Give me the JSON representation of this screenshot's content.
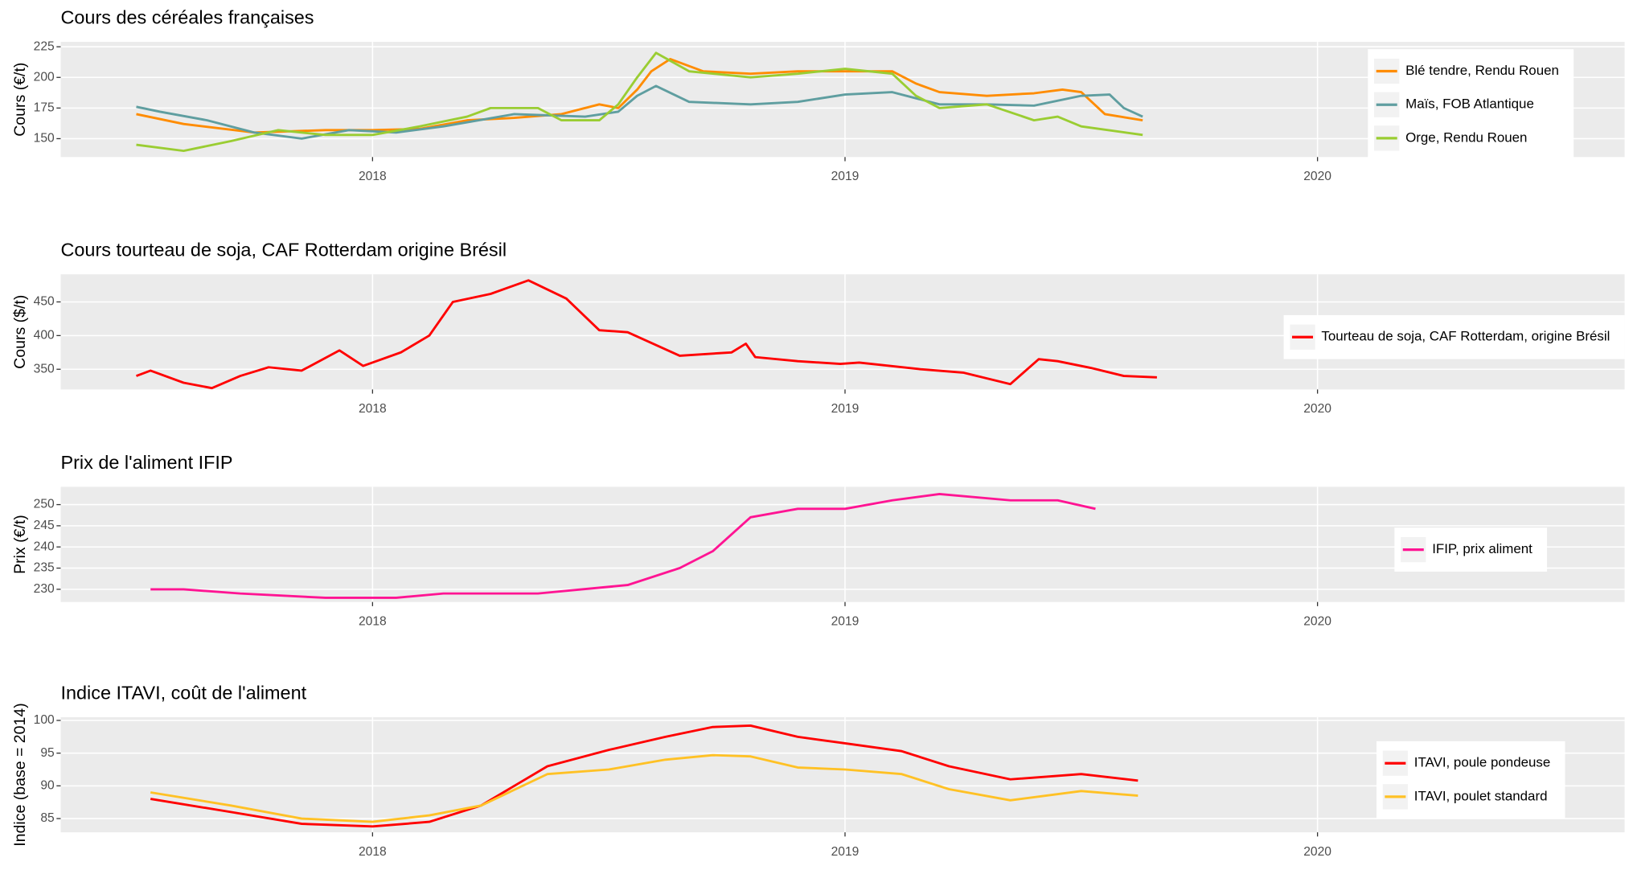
{
  "chart_data": [
    {
      "type": "line",
      "title": "Cours des céréales françaises",
      "ylabel": "Cours (€/t)",
      "legend": "right",
      "grid": true,
      "xlim": [
        2017.34,
        2020.65
      ],
      "xticks": [
        2018,
        2019,
        2020
      ],
      "ylim": [
        135,
        229
      ],
      "yticks": [
        150,
        175,
        200,
        225
      ],
      "series": [
        {
          "name": "Blé tendre, Rendu Rouen",
          "color": "#ff8c00",
          "x": [
            2017.5,
            2017.6,
            2017.75,
            2017.9,
            2018.0,
            2018.1,
            2018.2,
            2018.3,
            2018.4,
            2018.48,
            2018.52,
            2018.56,
            2018.59,
            2018.63,
            2018.7,
            2018.8,
            2018.9,
            2019.0,
            2019.1,
            2019.15,
            2019.2,
            2019.3,
            2019.4,
            2019.46,
            2019.5,
            2019.55,
            2019.63
          ],
          "values": [
            170,
            162,
            155,
            157,
            157,
            158,
            165,
            167,
            170,
            178,
            175,
            190,
            205,
            215,
            205,
            203,
            205,
            205,
            205,
            195,
            188,
            185,
            187,
            190,
            188,
            170,
            165
          ]
        },
        {
          "name": "Maïs, FOB Atlantique",
          "color": "#5f9ea0",
          "x": [
            2017.5,
            2017.55,
            2017.65,
            2017.75,
            2017.85,
            2017.95,
            2018.05,
            2018.15,
            2018.3,
            2018.45,
            2018.52,
            2018.56,
            2018.6,
            2018.67,
            2018.8,
            2018.9,
            2019.0,
            2019.1,
            2019.2,
            2019.3,
            2019.4,
            2019.5,
            2019.56,
            2019.59,
            2019.63
          ],
          "values": [
            176,
            172,
            165,
            155,
            150,
            157,
            155,
            160,
            170,
            168,
            172,
            185,
            193,
            180,
            178,
            180,
            186,
            188,
            178,
            178,
            177,
            185,
            186,
            175,
            168
          ]
        },
        {
          "name": "Orge, Rendu Rouen",
          "color": "#9acd32",
          "x": [
            2017.5,
            2017.6,
            2017.7,
            2017.8,
            2017.9,
            2018.0,
            2018.1,
            2018.2,
            2018.25,
            2018.35,
            2018.4,
            2018.48,
            2018.52,
            2018.56,
            2018.6,
            2018.67,
            2018.8,
            2018.9,
            2019.0,
            2019.1,
            2019.15,
            2019.2,
            2019.3,
            2019.4,
            2019.45,
            2019.5,
            2019.63
          ],
          "values": [
            145,
            140,
            148,
            157,
            153,
            153,
            160,
            168,
            175,
            175,
            165,
            165,
            178,
            200,
            220,
            205,
            200,
            203,
            207,
            203,
            185,
            175,
            178,
            165,
            168,
            160,
            153
          ]
        }
      ]
    },
    {
      "type": "line",
      "title": "Cours tourteau de soja, CAF Rotterdam origine Brésil",
      "ylabel": "Cours ($/t)",
      "legend": "right",
      "grid": true,
      "xlim": [
        2017.34,
        2020.65
      ],
      "xticks": [
        2018,
        2019,
        2020
      ],
      "ylim": [
        320,
        491
      ],
      "yticks": [
        350,
        400,
        450
      ],
      "series": [
        {
          "name": "Tourteau de soja, CAF Rotterdam, origine Brésil",
          "color": "#ff0000",
          "x": [
            2017.5,
            2017.53,
            2017.6,
            2017.66,
            2017.72,
            2017.78,
            2017.85,
            2017.93,
            2017.98,
            2018.06,
            2018.12,
            2018.17,
            2018.25,
            2018.33,
            2018.41,
            2018.48,
            2018.54,
            2018.65,
            2018.76,
            2018.79,
            2018.81,
            2018.9,
            2018.99,
            2019.03,
            2019.16,
            2019.25,
            2019.35,
            2019.41,
            2019.45,
            2019.52,
            2019.59,
            2019.66
          ],
          "values": [
            340,
            348,
            330,
            322,
            340,
            353,
            348,
            378,
            355,
            375,
            400,
            450,
            462,
            482,
            455,
            408,
            405,
            370,
            375,
            388,
            368,
            362,
            358,
            360,
            350,
            345,
            328,
            365,
            362,
            352,
            340,
            338
          ]
        }
      ]
    },
    {
      "type": "line",
      "title": "Prix de l'aliment IFIP",
      "ylabel": "Prix (€/t)",
      "legend": "right",
      "grid": true,
      "xlim": [
        2017.34,
        2020.65
      ],
      "xticks": [
        2018,
        2019,
        2020
      ],
      "ylim": [
        227,
        254.2
      ],
      "yticks": [
        230,
        235,
        240,
        245,
        250
      ],
      "series": [
        {
          "name": "IFIP, prix aliment",
          "color": "#ff1493",
          "x": [
            2017.53,
            2017.6,
            2017.72,
            2017.9,
            2018.05,
            2018.15,
            2018.35,
            2018.54,
            2018.65,
            2018.72,
            2018.8,
            2018.9,
            2019.0,
            2019.1,
            2019.2,
            2019.35,
            2019.45,
            2019.53
          ],
          "values": [
            230,
            230,
            229,
            228,
            228,
            229,
            229,
            231,
            235,
            239,
            247,
            249,
            249,
            251,
            252.5,
            251,
            251,
            249
          ]
        }
      ]
    },
    {
      "type": "line",
      "title": "Indice ITAVI, coût de l'aliment",
      "ylabel": "Indice (base = 2014)",
      "legend": "right",
      "grid": true,
      "xlim": [
        2017.34,
        2020.65
      ],
      "xticks": [
        2018,
        2019,
        2020
      ],
      "ylim": [
        82.9,
        100.5
      ],
      "yticks": [
        85,
        90,
        95,
        100
      ],
      "series": [
        {
          "name": "ITAVI, poule pondeuse",
          "color": "#ff0000",
          "x": [
            2017.53,
            2017.7,
            2017.85,
            2018.0,
            2018.12,
            2018.23,
            2018.37,
            2018.5,
            2018.62,
            2018.72,
            2018.8,
            2018.9,
            2019.0,
            2019.12,
            2019.22,
            2019.35,
            2019.5,
            2019.62
          ],
          "values": [
            88,
            86,
            84.2,
            83.8,
            84.5,
            87,
            93,
            95.5,
            97.5,
            99,
            99.2,
            97.5,
            96.5,
            95.3,
            93,
            91,
            91.8,
            90.8
          ]
        },
        {
          "name": "ITAVI, poulet standard",
          "color": "#ffc125",
          "x": [
            2017.53,
            2017.7,
            2017.85,
            2018.0,
            2018.12,
            2018.23,
            2018.37,
            2018.5,
            2018.62,
            2018.72,
            2018.8,
            2018.9,
            2019.0,
            2019.12,
            2019.22,
            2019.35,
            2019.5,
            2019.62
          ],
          "values": [
            89,
            87,
            85,
            84.5,
            85.5,
            87,
            91.8,
            92.5,
            94,
            94.7,
            94.5,
            92.8,
            92.5,
            91.8,
            89.5,
            87.8,
            89.2,
            88.5
          ]
        }
      ]
    }
  ]
}
